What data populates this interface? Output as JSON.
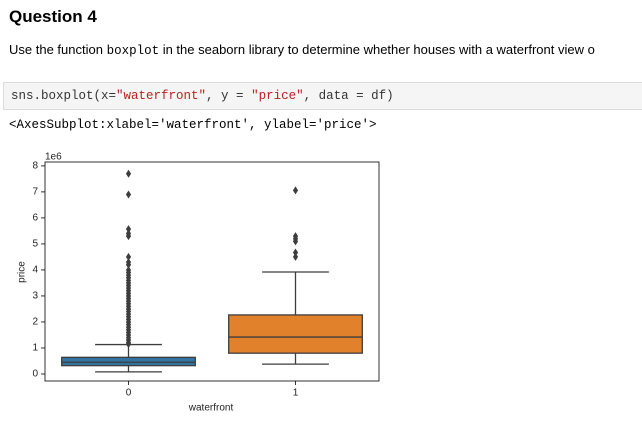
{
  "question": {
    "title": "Question 4",
    "text": [
      "Use the function ",
      "boxplot",
      " in the seaborn library to determine whether houses with a waterfront view o"
    ],
    "code": [
      "sns.boxplot(x=",
      "\"waterfront\"",
      ", y = ",
      "\"price\"",
      ", data = df)"
    ],
    "output": "<AxesSubplot:xlabel='waterfront', ylabel='price'>"
  },
  "chart_data": {
    "type": "boxplot",
    "x_label": "waterfront",
    "y_label": "price",
    "y_offset_label": "1e6",
    "categories": [
      "0",
      "1"
    ],
    "colors": [
      "#3274a1",
      "#e1812c"
    ],
    "ylim": [
      -0.27,
      8.15
    ],
    "yticks": [
      0,
      1,
      2,
      3,
      4,
      5,
      6,
      7,
      8
    ],
    "boxes": [
      {
        "whisker_low": 0.08,
        "q1": 0.32,
        "median": 0.45,
        "q3": 0.64,
        "whisker_high": 1.13,
        "outliers": [
          7.7,
          6.9,
          5.57,
          5.4,
          5.3,
          4.5,
          4.3,
          4.2,
          4.0,
          3.9,
          3.8,
          3.7,
          3.6,
          3.5,
          3.4,
          3.3,
          3.2,
          3.1,
          3.0,
          2.9,
          2.8,
          2.7,
          2.6,
          2.5,
          2.4,
          2.3,
          2.2,
          2.1,
          2.0,
          1.9,
          1.8,
          1.7,
          1.6,
          1.5,
          1.4,
          1.3,
          1.2,
          1.15
        ]
      },
      {
        "whisker_low": 0.38,
        "q1": 0.8,
        "median": 1.42,
        "q3": 2.27,
        "whisker_high": 3.92,
        "outliers": [
          7.06,
          5.3,
          5.2,
          5.1,
          4.67,
          4.5
        ]
      }
    ]
  }
}
